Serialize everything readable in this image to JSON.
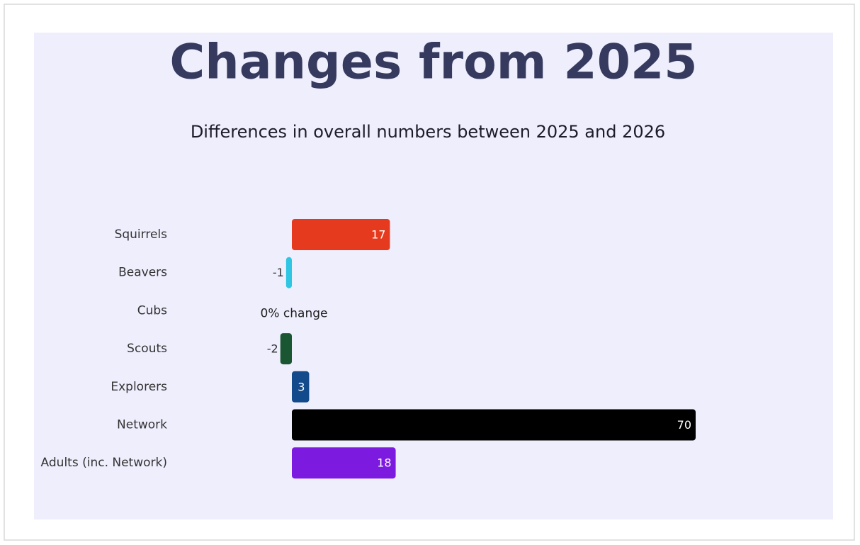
{
  "chart_data": {
    "type": "hbar",
    "title": "Changes from 2025",
    "subtitle": "Differences in overall numbers between 2025 and 2026",
    "categories": [
      "Squirrels",
      "Beavers",
      "Cubs",
      "Scouts",
      "Explorers",
      "Network",
      "Adults (inc. Network)"
    ],
    "values": [
      17,
      -1,
      0,
      -2,
      3,
      70,
      18
    ],
    "value_labels": [
      "17",
      "-1",
      "0% change",
      "-2",
      "3",
      "70",
      "18"
    ],
    "colors": [
      "#e63a1e",
      "#2ec6e2",
      null,
      "#1a5632",
      "#124a8c",
      "#000000",
      "#7c1ae0"
    ]
  }
}
